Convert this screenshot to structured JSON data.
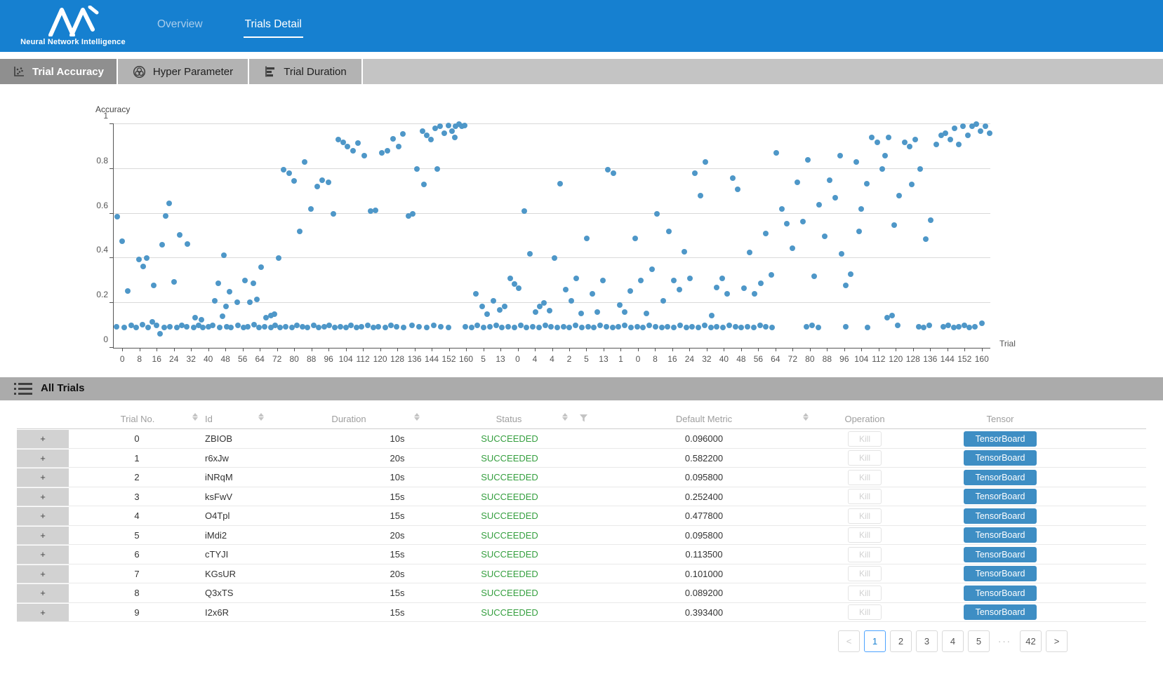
{
  "brand": {
    "title": "Neural Network Intelligence"
  },
  "nav": [
    {
      "label": "Overview",
      "active": false
    },
    {
      "label": "Trials Detail",
      "active": true
    }
  ],
  "tabs": [
    {
      "label": "Trial Accuracy",
      "icon": "scatter-icon",
      "selected": true
    },
    {
      "label": "Hyper Parameter",
      "icon": "venn-icon",
      "selected": false
    },
    {
      "label": "Trial Duration",
      "icon": "bar-icon",
      "selected": false
    }
  ],
  "chart_data": {
    "type": "scatter",
    "title": "",
    "ylabel": "Accuracy",
    "xlabel": "Trial",
    "ylim": [
      0,
      1
    ],
    "y_ticks": [
      0,
      0.2,
      0.4,
      0.6,
      0.8,
      1
    ],
    "point_color": "#4e97c8",
    "grid": true,
    "x_tick_labels": [
      "0",
      "8",
      "16",
      "24",
      "32",
      "40",
      "48",
      "56",
      "64",
      "72",
      "80",
      "88",
      "96",
      "104",
      "112",
      "120",
      "128",
      "136",
      "144",
      "152",
      "160",
      "5",
      "13",
      "0",
      "4",
      "4",
      "2",
      "5",
      "13",
      "1",
      "0",
      "8",
      "16",
      "24",
      "32",
      "40",
      "48",
      "56",
      "64",
      "72",
      "80",
      "88",
      "96",
      "104",
      "112",
      "120",
      "128",
      "136",
      "144",
      "152",
      "160"
    ],
    "x_unit": "percent-of-plot-width",
    "points": [
      [
        0.3,
        0.095
      ],
      [
        1.2,
        0.09
      ],
      [
        2.0,
        0.1
      ],
      [
        2.6,
        0.09
      ],
      [
        3.3,
        0.105
      ],
      [
        3.9,
        0.09
      ],
      [
        4.4,
        0.115
      ],
      [
        4.9,
        0.1
      ],
      [
        5.3,
        0.063
      ],
      [
        5.8,
        0.09
      ],
      [
        6.4,
        0.095
      ],
      [
        7.2,
        0.09
      ],
      [
        7.8,
        0.1
      ],
      [
        8.3,
        0.095
      ],
      [
        9.1,
        0.09
      ],
      [
        9.7,
        0.1
      ],
      [
        10.2,
        0.09
      ],
      [
        10.8,
        0.095
      ],
      [
        11.3,
        0.1
      ],
      [
        12.1,
        0.09
      ],
      [
        12.9,
        0.095
      ],
      [
        13.4,
        0.09
      ],
      [
        14.2,
        0.1
      ],
      [
        14.8,
        0.09
      ],
      [
        15.3,
        0.095
      ],
      [
        16.0,
        0.105
      ],
      [
        16.6,
        0.09
      ],
      [
        17.2,
        0.095
      ],
      [
        17.9,
        0.09
      ],
      [
        18.4,
        0.1
      ],
      [
        19.0,
        0.09
      ],
      [
        19.6,
        0.095
      ],
      [
        20.3,
        0.09
      ],
      [
        20.9,
        0.1
      ],
      [
        21.5,
        0.095
      ],
      [
        22.1,
        0.09
      ],
      [
        22.8,
        0.1
      ],
      [
        23.4,
        0.09
      ],
      [
        24.0,
        0.095
      ],
      [
        24.6,
        0.1
      ],
      [
        25.2,
        0.09
      ],
      [
        25.9,
        0.095
      ],
      [
        26.5,
        0.09
      ],
      [
        27.1,
        0.1
      ],
      [
        27.7,
        0.09
      ],
      [
        28.3,
        0.095
      ],
      [
        29.0,
        0.1
      ],
      [
        29.6,
        0.09
      ],
      [
        30.2,
        0.095
      ],
      [
        31.0,
        0.09
      ],
      [
        31.6,
        0.1
      ],
      [
        32.3,
        0.095
      ],
      [
        33.1,
        0.09
      ],
      [
        34.0,
        0.1
      ],
      [
        34.8,
        0.095
      ],
      [
        35.7,
        0.09
      ],
      [
        36.5,
        0.1
      ],
      [
        37.3,
        0.095
      ],
      [
        38.2,
        0.09
      ],
      [
        40.1,
        0.095
      ],
      [
        40.8,
        0.09
      ],
      [
        41.5,
        0.1
      ],
      [
        42.2,
        0.09
      ],
      [
        42.9,
        0.095
      ],
      [
        43.6,
        0.1
      ],
      [
        44.3,
        0.09
      ],
      [
        45.0,
        0.095
      ],
      [
        45.7,
        0.09
      ],
      [
        46.4,
        0.1
      ],
      [
        47.1,
        0.09
      ],
      [
        47.8,
        0.095
      ],
      [
        48.5,
        0.09
      ],
      [
        49.2,
        0.1
      ],
      [
        49.9,
        0.095
      ],
      [
        50.6,
        0.09
      ],
      [
        51.3,
        0.095
      ],
      [
        52.0,
        0.09
      ],
      [
        52.7,
        0.1
      ],
      [
        53.4,
        0.09
      ],
      [
        54.1,
        0.095
      ],
      [
        54.8,
        0.09
      ],
      [
        55.5,
        0.1
      ],
      [
        56.2,
        0.095
      ],
      [
        56.9,
        0.09
      ],
      [
        57.6,
        0.095
      ],
      [
        58.3,
        0.1
      ],
      [
        59.0,
        0.09
      ],
      [
        59.7,
        0.095
      ],
      [
        60.4,
        0.09
      ],
      [
        61.1,
        0.1
      ],
      [
        61.8,
        0.095
      ],
      [
        62.5,
        0.09
      ],
      [
        63.2,
        0.095
      ],
      [
        63.9,
        0.09
      ],
      [
        64.6,
        0.1
      ],
      [
        65.3,
        0.09
      ],
      [
        66.0,
        0.095
      ],
      [
        66.7,
        0.09
      ],
      [
        67.4,
        0.1
      ],
      [
        68.1,
        0.09
      ],
      [
        68.8,
        0.095
      ],
      [
        69.5,
        0.09
      ],
      [
        70.2,
        0.1
      ],
      [
        70.9,
        0.095
      ],
      [
        71.6,
        0.09
      ],
      [
        72.3,
        0.095
      ],
      [
        73.0,
        0.09
      ],
      [
        73.7,
        0.1
      ],
      [
        74.4,
        0.095
      ],
      [
        75.1,
        0.09
      ],
      [
        79.0,
        0.095
      ],
      [
        79.7,
        0.1
      ],
      [
        80.4,
        0.09
      ],
      [
        83.5,
        0.095
      ],
      [
        86.0,
        0.09
      ],
      [
        88.2,
        0.135
      ],
      [
        88.8,
        0.145
      ],
      [
        89.4,
        0.1
      ],
      [
        91.8,
        0.095
      ],
      [
        92.4,
        0.09
      ],
      [
        93.0,
        0.1
      ],
      [
        94.6,
        0.095
      ],
      [
        95.2,
        0.1
      ],
      [
        95.8,
        0.09
      ],
      [
        96.4,
        0.095
      ],
      [
        97.0,
        0.1
      ],
      [
        97.6,
        0.09
      ],
      [
        98.2,
        0.095
      ],
      [
        99.0,
        0.11
      ],
      [
        0.4,
        0.585
      ],
      [
        1.0,
        0.475
      ],
      [
        1.6,
        0.253
      ],
      [
        2.9,
        0.395
      ],
      [
        3.4,
        0.365
      ],
      [
        3.8,
        0.4
      ],
      [
        4.6,
        0.278
      ],
      [
        5.5,
        0.46
      ],
      [
        5.9,
        0.59
      ],
      [
        6.3,
        0.645
      ],
      [
        6.9,
        0.295
      ],
      [
        7.5,
        0.505
      ],
      [
        8.4,
        0.465
      ],
      [
        9.3,
        0.135
      ],
      [
        10.0,
        0.125
      ],
      [
        11.5,
        0.21
      ],
      [
        11.9,
        0.29
      ],
      [
        12.4,
        0.14
      ],
      [
        12.8,
        0.185
      ],
      [
        13.2,
        0.25
      ],
      [
        12.6,
        0.415
      ],
      [
        14.1,
        0.205
      ],
      [
        15.0,
        0.3
      ],
      [
        15.5,
        0.205
      ],
      [
        15.9,
        0.29
      ],
      [
        16.3,
        0.215
      ],
      [
        16.8,
        0.36
      ],
      [
        17.4,
        0.135
      ],
      [
        17.9,
        0.145
      ],
      [
        18.3,
        0.15
      ],
      [
        18.8,
        0.4
      ],
      [
        19.4,
        0.795
      ],
      [
        20.0,
        0.78
      ],
      [
        20.6,
        0.745
      ],
      [
        21.2,
        0.52
      ],
      [
        21.8,
        0.83
      ],
      [
        22.5,
        0.62
      ],
      [
        23.2,
        0.72
      ],
      [
        23.8,
        0.75
      ],
      [
        24.5,
        0.74
      ],
      [
        25.1,
        0.6
      ],
      [
        25.6,
        0.93
      ],
      [
        26.2,
        0.92
      ],
      [
        26.7,
        0.9
      ],
      [
        27.3,
        0.88
      ],
      [
        27.9,
        0.915
      ],
      [
        28.6,
        0.86
      ],
      [
        29.3,
        0.61
      ],
      [
        29.9,
        0.615
      ],
      [
        30.6,
        0.87
      ],
      [
        31.2,
        0.88
      ],
      [
        31.9,
        0.935
      ],
      [
        32.5,
        0.9
      ],
      [
        33.0,
        0.955
      ],
      [
        33.6,
        0.59
      ],
      [
        34.1,
        0.6
      ],
      [
        34.6,
        0.8
      ],
      [
        35.2,
        0.97
      ],
      [
        35.4,
        0.73
      ],
      [
        35.7,
        0.95
      ],
      [
        36.2,
        0.93
      ],
      [
        36.7,
        0.98
      ],
      [
        36.9,
        0.8
      ],
      [
        37.2,
        0.99
      ],
      [
        37.7,
        0.96
      ],
      [
        38.2,
        0.995
      ],
      [
        38.6,
        0.97
      ],
      [
        38.9,
        0.94
      ],
      [
        39.0,
        0.99
      ],
      [
        39.4,
        1.0
      ],
      [
        39.7,
        0.99
      ],
      [
        40.0,
        0.995
      ],
      [
        41.3,
        0.24
      ],
      [
        42.0,
        0.185
      ],
      [
        42.6,
        0.15
      ],
      [
        43.3,
        0.21
      ],
      [
        44.0,
        0.17
      ],
      [
        44.6,
        0.185
      ],
      [
        45.2,
        0.31
      ],
      [
        45.7,
        0.285
      ],
      [
        46.2,
        0.265
      ],
      [
        46.8,
        0.61
      ],
      [
        47.5,
        0.42
      ],
      [
        48.1,
        0.16
      ],
      [
        48.6,
        0.185
      ],
      [
        49.1,
        0.2
      ],
      [
        49.7,
        0.165
      ],
      [
        50.3,
        0.4
      ],
      [
        50.9,
        0.735
      ],
      [
        51.6,
        0.26
      ],
      [
        52.2,
        0.21
      ],
      [
        52.8,
        0.31
      ],
      [
        53.3,
        0.155
      ],
      [
        54.0,
        0.49
      ],
      [
        54.6,
        0.24
      ],
      [
        55.2,
        0.16
      ],
      [
        55.8,
        0.3
      ],
      [
        56.4,
        0.795
      ],
      [
        57.0,
        0.78
      ],
      [
        57.7,
        0.19
      ],
      [
        58.3,
        0.16
      ],
      [
        58.9,
        0.255
      ],
      [
        59.5,
        0.49
      ],
      [
        60.1,
        0.3
      ],
      [
        60.8,
        0.155
      ],
      [
        61.4,
        0.35
      ],
      [
        62.0,
        0.6
      ],
      [
        62.7,
        0.21
      ],
      [
        63.3,
        0.52
      ],
      [
        63.9,
        0.3
      ],
      [
        64.5,
        0.26
      ],
      [
        65.1,
        0.43
      ],
      [
        65.7,
        0.31
      ],
      [
        66.3,
        0.78
      ],
      [
        66.9,
        0.68
      ],
      [
        67.5,
        0.83
      ],
      [
        68.2,
        0.145
      ],
      [
        68.8,
        0.27
      ],
      [
        69.4,
        0.31
      ],
      [
        70.0,
        0.24
      ],
      [
        70.6,
        0.76
      ],
      [
        71.2,
        0.71
      ],
      [
        71.9,
        0.265
      ],
      [
        72.5,
        0.425
      ],
      [
        73.1,
        0.24
      ],
      [
        73.8,
        0.29
      ],
      [
        74.4,
        0.51
      ],
      [
        75.0,
        0.325
      ],
      [
        75.6,
        0.87
      ],
      [
        76.2,
        0.62
      ],
      [
        76.8,
        0.555
      ],
      [
        77.4,
        0.445
      ],
      [
        78.0,
        0.74
      ],
      [
        78.6,
        0.565
      ],
      [
        79.2,
        0.84
      ],
      [
        79.9,
        0.32
      ],
      [
        80.5,
        0.64
      ],
      [
        81.1,
        0.5
      ],
      [
        81.7,
        0.75
      ],
      [
        82.3,
        0.67
      ],
      [
        82.9,
        0.86
      ],
      [
        83.0,
        0.42
      ],
      [
        83.5,
        0.28
      ],
      [
        84.1,
        0.33
      ],
      [
        84.7,
        0.83
      ],
      [
        85.0,
        0.52
      ],
      [
        85.3,
        0.62
      ],
      [
        85.9,
        0.735
      ],
      [
        86.5,
        0.94
      ],
      [
        87.1,
        0.92
      ],
      [
        87.7,
        0.8
      ],
      [
        88.0,
        0.86
      ],
      [
        88.4,
        0.94
      ],
      [
        89.0,
        0.55
      ],
      [
        89.6,
        0.68
      ],
      [
        90.2,
        0.92
      ],
      [
        90.8,
        0.9
      ],
      [
        91.0,
        0.73
      ],
      [
        91.4,
        0.93
      ],
      [
        92.0,
        0.8
      ],
      [
        92.6,
        0.485
      ],
      [
        93.2,
        0.57
      ],
      [
        93.8,
        0.91
      ],
      [
        94.4,
        0.95
      ],
      [
        94.9,
        0.96
      ],
      [
        95.4,
        0.93
      ],
      [
        95.9,
        0.98
      ],
      [
        96.4,
        0.91
      ],
      [
        96.9,
        0.99
      ],
      [
        97.4,
        0.95
      ],
      [
        97.9,
        0.99
      ],
      [
        98.4,
        1.0
      ],
      [
        98.9,
        0.97
      ],
      [
        99.4,
        0.99
      ],
      [
        99.9,
        0.96
      ]
    ]
  },
  "all_trials": {
    "title": "All Trials",
    "icon": "list-icon"
  },
  "table": {
    "columns": [
      {
        "label": "Trial No.",
        "sortable": true
      },
      {
        "label": "Id",
        "sortable": true
      },
      {
        "label": "Duration",
        "sortable": true
      },
      {
        "label": "Status",
        "sortable": true,
        "filterable": true
      },
      {
        "label": "Default Metric",
        "sortable": true
      },
      {
        "label": "Operation",
        "sortable": false
      },
      {
        "label": "Tensor",
        "sortable": false
      }
    ],
    "expand_symbol": "+",
    "rows": [
      {
        "trial_no": "0",
        "id": "ZBIOB",
        "duration": "10s",
        "status": "SUCCEEDED",
        "metric": "0.096000",
        "kill": "Kill",
        "tensor": "TensorBoard"
      },
      {
        "trial_no": "1",
        "id": "r6xJw",
        "duration": "20s",
        "status": "SUCCEEDED",
        "metric": "0.582200",
        "kill": "Kill",
        "tensor": "TensorBoard"
      },
      {
        "trial_no": "2",
        "id": "iNRqM",
        "duration": "10s",
        "status": "SUCCEEDED",
        "metric": "0.095800",
        "kill": "Kill",
        "tensor": "TensorBoard"
      },
      {
        "trial_no": "3",
        "id": "ksFwV",
        "duration": "15s",
        "status": "SUCCEEDED",
        "metric": "0.252400",
        "kill": "Kill",
        "tensor": "TensorBoard"
      },
      {
        "trial_no": "4",
        "id": "O4Tpl",
        "duration": "15s",
        "status": "SUCCEEDED",
        "metric": "0.477800",
        "kill": "Kill",
        "tensor": "TensorBoard"
      },
      {
        "trial_no": "5",
        "id": "iMdi2",
        "duration": "20s",
        "status": "SUCCEEDED",
        "metric": "0.095800",
        "kill": "Kill",
        "tensor": "TensorBoard"
      },
      {
        "trial_no": "6",
        "id": "cTYJI",
        "duration": "15s",
        "status": "SUCCEEDED",
        "metric": "0.113500",
        "kill": "Kill",
        "tensor": "TensorBoard"
      },
      {
        "trial_no": "7",
        "id": "KGsUR",
        "duration": "20s",
        "status": "SUCCEEDED",
        "metric": "0.101000",
        "kill": "Kill",
        "tensor": "TensorBoard"
      },
      {
        "trial_no": "8",
        "id": "Q3xTS",
        "duration": "15s",
        "status": "SUCCEEDED",
        "metric": "0.089200",
        "kill": "Kill",
        "tensor": "TensorBoard"
      },
      {
        "trial_no": "9",
        "id": "I2x6R",
        "duration": "15s",
        "status": "SUCCEEDED",
        "metric": "0.393400",
        "kill": "Kill",
        "tensor": "TensorBoard"
      }
    ]
  },
  "pagination": {
    "items": [
      {
        "label": "<",
        "kind": "prev",
        "disabled": true
      },
      {
        "label": "1",
        "kind": "page",
        "active": true
      },
      {
        "label": "2",
        "kind": "page"
      },
      {
        "label": "3",
        "kind": "page"
      },
      {
        "label": "4",
        "kind": "page"
      },
      {
        "label": "5",
        "kind": "page"
      },
      {
        "label": "···",
        "kind": "ellipsis"
      },
      {
        "label": "42",
        "kind": "page"
      },
      {
        "label": ">",
        "kind": "next"
      }
    ]
  },
  "colors": {
    "header_blue": "#1680d0",
    "scatter_point": "#4e97c8",
    "status_success": "#359f3f",
    "tensorboard_button": "#3e8ec4",
    "active_page_border": "#4da3ff"
  }
}
